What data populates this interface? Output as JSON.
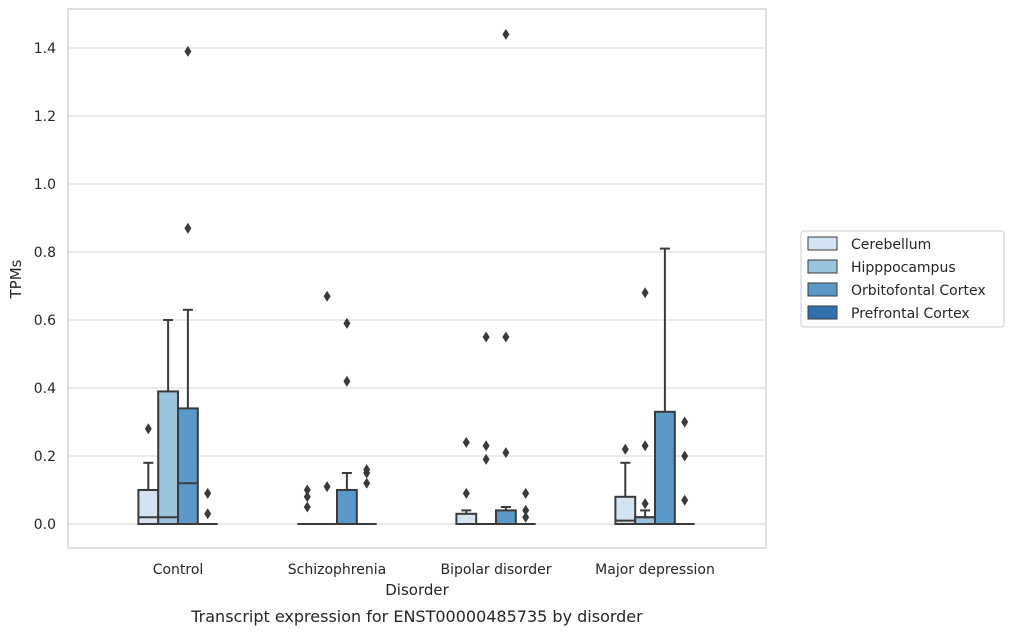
{
  "caption": "Transcript expression for ENST00000485735 by disorder",
  "chart_data": {
    "type": "box",
    "xlabel": "Disorder",
    "ylabel": "TPMs",
    "ylim": [
      -0.07,
      1.52
    ],
    "yticks": [
      0.0,
      0.2,
      0.4,
      0.6,
      0.8,
      1.0,
      1.2,
      1.4
    ],
    "ytick_labels": [
      "0.0",
      "0.2",
      "0.4",
      "0.6",
      "0.8",
      "1.0",
      "1.2",
      "1.4"
    ],
    "grid": "horizontal",
    "legend_position": "right",
    "categories": [
      "Control",
      "Schizophrenia",
      "Bipolar disorder",
      "Major depression"
    ],
    "series": [
      {
        "name": "Cerebellum",
        "color": "#d3e3f2",
        "boxes": [
          {
            "q1": 0.0,
            "median": 0.02,
            "q3": 0.1,
            "whisker_low": 0.0,
            "whisker_high": 0.18,
            "outliers": [
              0.28
            ]
          },
          {
            "q1": 0.0,
            "median": 0.0,
            "q3": 0.0,
            "whisker_low": 0.0,
            "whisker_high": 0.0,
            "outliers": [
              0.05,
              0.08,
              0.1
            ]
          },
          {
            "q1": 0.0,
            "median": 0.0,
            "q3": 0.03,
            "whisker_low": 0.0,
            "whisker_high": 0.04,
            "outliers": [
              0.09,
              0.24
            ]
          },
          {
            "q1": 0.0,
            "median": 0.01,
            "q3": 0.08,
            "whisker_low": 0.0,
            "whisker_high": 0.18,
            "outliers": [
              0.22
            ]
          }
        ]
      },
      {
        "name": "Hipppocampus",
        "color": "#9ac4de",
        "boxes": [
          {
            "q1": 0.0,
            "median": 0.02,
            "q3": 0.39,
            "whisker_low": 0.0,
            "whisker_high": 0.6,
            "outliers": []
          },
          {
            "q1": 0.0,
            "median": 0.0,
            "q3": 0.0,
            "whisker_low": 0.0,
            "whisker_high": 0.0,
            "outliers": [
              0.11,
              0.67
            ]
          },
          {
            "q1": 0.0,
            "median": 0.0,
            "q3": 0.0,
            "whisker_low": 0.0,
            "whisker_high": 0.0,
            "outliers": [
              0.19,
              0.23,
              0.55
            ]
          },
          {
            "q1": 0.0,
            "median": 0.02,
            "q3": 0.02,
            "whisker_low": 0.0,
            "whisker_high": 0.04,
            "outliers": [
              0.06,
              0.23,
              0.68
            ]
          }
        ]
      },
      {
        "name": "Orbitofontal Cortex",
        "color": "#5b9ac8",
        "boxes": [
          {
            "q1": 0.0,
            "median": 0.12,
            "q3": 0.34,
            "whisker_low": 0.0,
            "whisker_high": 0.63,
            "outliers": [
              0.87,
              1.39
            ]
          },
          {
            "q1": 0.0,
            "median": 0.0,
            "q3": 0.1,
            "whisker_low": 0.0,
            "whisker_high": 0.15,
            "outliers": [
              0.42,
              0.59
            ]
          },
          {
            "q1": 0.0,
            "median": 0.0,
            "q3": 0.04,
            "whisker_low": 0.0,
            "whisker_high": 0.05,
            "outliers": [
              0.21,
              0.55,
              1.44
            ]
          },
          {
            "q1": 0.0,
            "median": 0.0,
            "q3": 0.33,
            "whisker_low": 0.0,
            "whisker_high": 0.81,
            "outliers": []
          }
        ]
      },
      {
        "name": "Prefrontal Cortex",
        "color": "#3170ad",
        "boxes": [
          {
            "q1": 0.0,
            "median": 0.0,
            "q3": 0.0,
            "whisker_low": 0.0,
            "whisker_high": 0.0,
            "outliers": [
              0.03,
              0.09
            ]
          },
          {
            "q1": 0.0,
            "median": 0.0,
            "q3": 0.0,
            "whisker_low": 0.0,
            "whisker_high": 0.0,
            "outliers": [
              0.12,
              0.15,
              0.16
            ]
          },
          {
            "q1": 0.0,
            "median": 0.0,
            "q3": 0.0,
            "whisker_low": 0.0,
            "whisker_high": 0.0,
            "outliers": [
              0.02,
              0.04,
              0.09
            ]
          },
          {
            "q1": 0.0,
            "median": 0.0,
            "q3": 0.0,
            "whisker_low": 0.0,
            "whisker_high": 0.0,
            "outliers": [
              0.07,
              0.2,
              0.3
            ]
          }
        ]
      }
    ]
  }
}
